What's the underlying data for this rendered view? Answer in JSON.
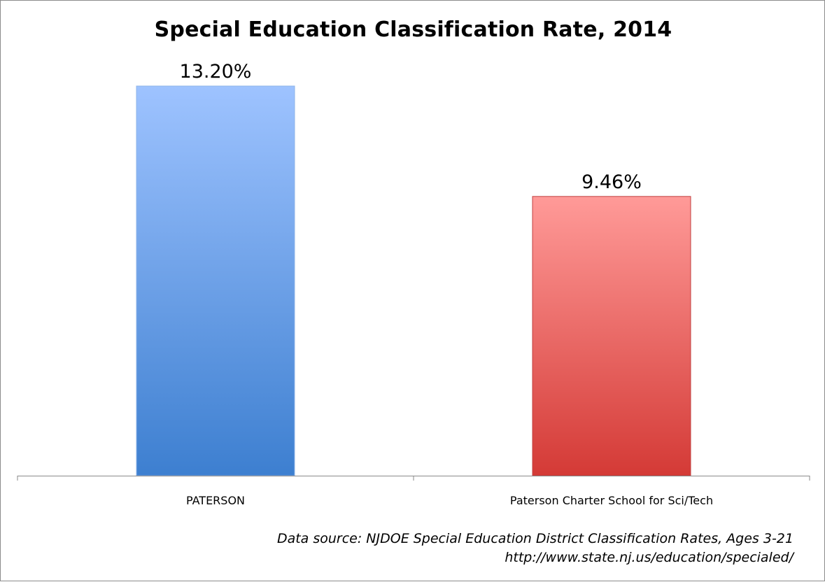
{
  "chart_data": {
    "type": "bar",
    "title": "Special Education Classification Rate, 2014",
    "categories": [
      "PATERSON",
      "Paterson Charter School for Sci/Tech"
    ],
    "values": [
      13.2,
      9.46
    ],
    "value_labels": [
      "13.20%",
      "9.46%"
    ],
    "xlabel": "",
    "ylabel": "",
    "ylim": [
      0,
      13.2
    ],
    "grid": false,
    "legend": "none",
    "colors": {
      "bar_1_top": "#9ec3ff",
      "bar_1_bottom": "#3d7fd0",
      "bar_2_top": "#ff9a98",
      "bar_2_bottom": "#d43a36"
    }
  },
  "footer": {
    "source_line1": "Data source: NJDOE Special Education District Classification Rates, Ages 3-21",
    "source_line2": "http://www.state.nj.us/education/specialed/"
  }
}
